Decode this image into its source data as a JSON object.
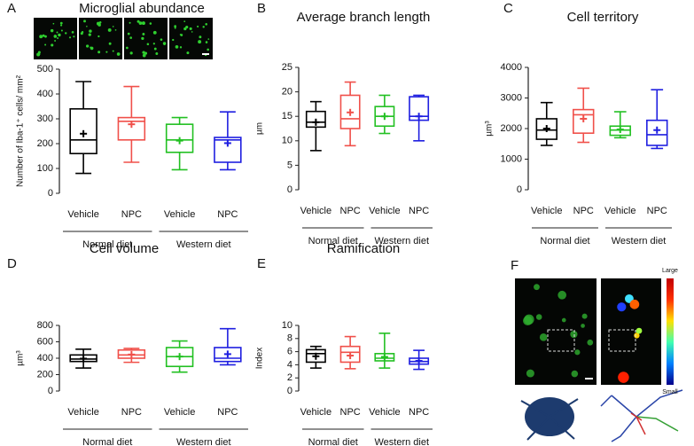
{
  "chart_data": [
    {
      "type": "box",
      "panel": "A",
      "title": "Microglial abundance",
      "ylabel": "Number of Iba-1⁺ cells/ mm²",
      "ylim": [
        0,
        500
      ],
      "yticks": [
        0,
        100,
        200,
        300,
        400,
        500
      ],
      "categories": [
        "Vehicle",
        "NPC",
        "Vehicle",
        "NPC"
      ],
      "groups": [
        "Normal diet",
        "Western diet"
      ],
      "boxes": [
        {
          "color": "#000000",
          "min": 80,
          "q1": 160,
          "median": 215,
          "q3": 340,
          "max": 450,
          "mean": 240
        },
        {
          "color": "#f0504a",
          "min": 125,
          "q1": 215,
          "median": 290,
          "q3": 305,
          "max": 430,
          "mean": 278
        },
        {
          "color": "#22c022",
          "min": 95,
          "q1": 165,
          "median": 215,
          "q3": 278,
          "max": 305,
          "mean": 212
        },
        {
          "color": "#1f1fe0",
          "min": 95,
          "q1": 125,
          "median": 215,
          "q3": 225,
          "max": 328,
          "mean": 202
        }
      ]
    },
    {
      "type": "box",
      "panel": "B",
      "title": "Average branch length",
      "ylabel": "µm",
      "ylim": [
        0,
        25
      ],
      "yticks": [
        0,
        5,
        10,
        15,
        20,
        25
      ],
      "categories": [
        "Vehicle",
        "NPC",
        "Vehicle",
        "NPC"
      ],
      "groups": [
        "Normal diet",
        "Western diet"
      ],
      "boxes": [
        {
          "color": "#000000",
          "min": 8,
          "q1": 12.8,
          "median": 13.8,
          "q3": 16,
          "max": 18,
          "mean": 13.8
        },
        {
          "color": "#f0504a",
          "min": 9,
          "q1": 12.5,
          "median": 14.5,
          "q3": 19.3,
          "max": 22,
          "mean": 15.8
        },
        {
          "color": "#22c022",
          "min": 11.5,
          "q1": 13,
          "median": 15,
          "q3": 17,
          "max": 19.3,
          "mean": 15
        },
        {
          "color": "#1f1fe0",
          "min": 10,
          "q1": 14.2,
          "median": 15,
          "q3": 19,
          "max": 19.3,
          "mean": 15
        }
      ]
    },
    {
      "type": "box",
      "panel": "C",
      "title": "Cell territory",
      "ylabel": "µm³",
      "ylim": [
        0,
        4000
      ],
      "yticks": [
        0,
        1000,
        2000,
        3000,
        4000
      ],
      "categories": [
        "Vehicle",
        "NPC",
        "Vehicle",
        "NPC"
      ],
      "groups": [
        "Normal diet",
        "Western diet"
      ],
      "boxes": [
        {
          "color": "#000000",
          "min": 1450,
          "q1": 1650,
          "median": 1950,
          "q3": 2320,
          "max": 2850,
          "mean": 2000
        },
        {
          "color": "#f0504a",
          "min": 1550,
          "q1": 1850,
          "median": 2450,
          "q3": 2620,
          "max": 3320,
          "mean": 2320
        },
        {
          "color": "#22c022",
          "min": 1700,
          "q1": 1780,
          "median": 1950,
          "q3": 2080,
          "max": 2550,
          "mean": 1970
        },
        {
          "color": "#1f1fe0",
          "min": 1350,
          "q1": 1450,
          "median": 1800,
          "q3": 2270,
          "max": 3270,
          "mean": 1950
        }
      ]
    },
    {
      "type": "box",
      "panel": "D",
      "title": "Cell volume",
      "ylabel": "µm³",
      "ylim": [
        0,
        800
      ],
      "yticks": [
        0,
        200,
        400,
        600,
        800
      ],
      "categories": [
        "Vehicle",
        "NPC",
        "Vehicle",
        "NPC"
      ],
      "groups": [
        "Normal diet",
        "Western diet"
      ],
      "boxes": [
        {
          "color": "#000000",
          "min": 280,
          "q1": 360,
          "median": 390,
          "q3": 440,
          "max": 510,
          "mean": 395
        },
        {
          "color": "#f0504a",
          "min": 350,
          "q1": 400,
          "median": 440,
          "q3": 500,
          "max": 520,
          "mean": 445
        },
        {
          "color": "#22c022",
          "min": 230,
          "q1": 300,
          "median": 420,
          "q3": 530,
          "max": 610,
          "mean": 420
        },
        {
          "color": "#1f1fe0",
          "min": 320,
          "q1": 360,
          "median": 400,
          "q3": 530,
          "max": 760,
          "mean": 450
        }
      ]
    },
    {
      "type": "box",
      "panel": "E",
      "title": "Ramification",
      "ylabel": "Index",
      "ylim": [
        0,
        10
      ],
      "yticks": [
        0,
        2,
        4,
        6,
        8,
        10
      ],
      "categories": [
        "Vehicle",
        "NPC",
        "Vehicle",
        "NPC"
      ],
      "groups": [
        "Normal diet",
        "Western diet"
      ],
      "boxes": [
        {
          "color": "#000000",
          "min": 3.5,
          "q1": 4.4,
          "median": 5.7,
          "q3": 6.3,
          "max": 6.8,
          "mean": 5.3
        },
        {
          "color": "#f0504a",
          "min": 3.4,
          "q1": 4.4,
          "median": 5.9,
          "q3": 6.8,
          "max": 8.3,
          "mean": 5.4
        },
        {
          "color": "#22c022",
          "min": 3.5,
          "q1": 4.6,
          "median": 5.0,
          "q3": 5.7,
          "max": 8.8,
          "mean": 5.2
        },
        {
          "color": "#1f1fe0",
          "min": 3.3,
          "q1": 4.1,
          "median": 4.5,
          "q3": 5.0,
          "max": 6.2,
          "mean": 4.6
        }
      ]
    }
  ],
  "panel_f": {
    "panel": "F",
    "scale_top": "Large",
    "scale_bottom": "Small"
  }
}
